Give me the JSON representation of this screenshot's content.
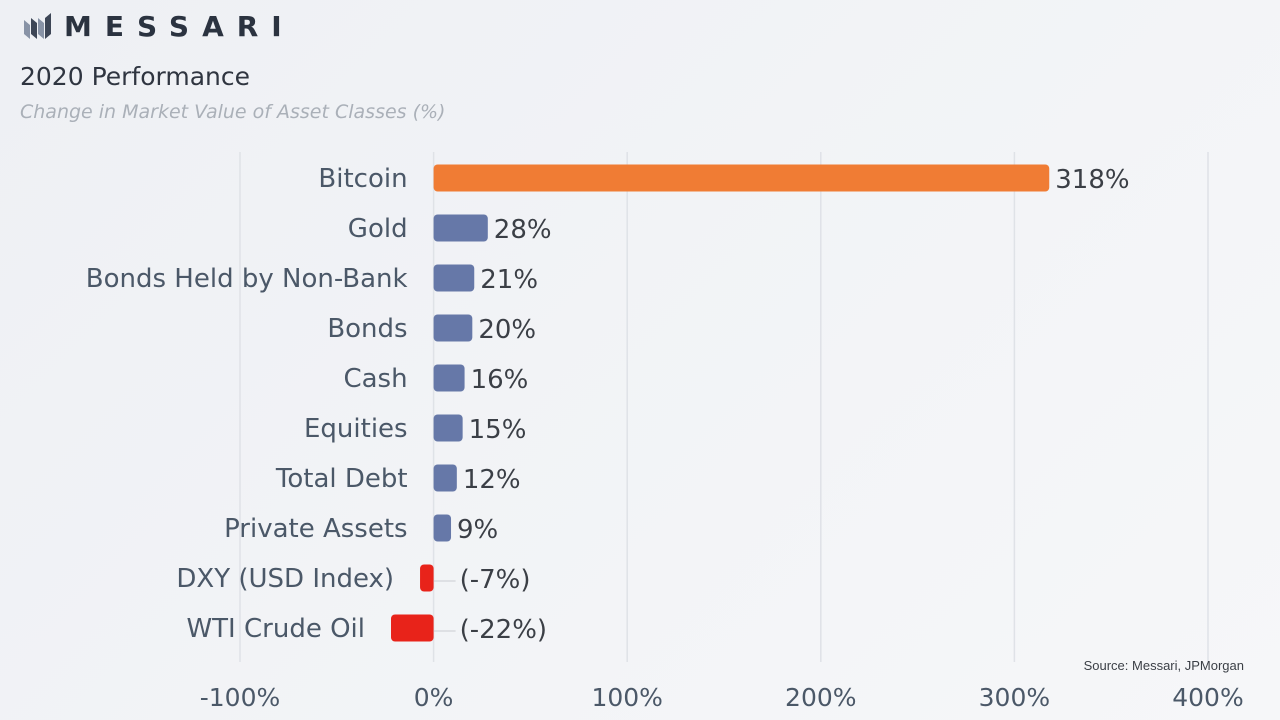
{
  "brand": {
    "name": "MESSARI"
  },
  "header": {
    "title": "2020 Performance",
    "subtitle": "Change in Market Value of  Asset Classes (%)"
  },
  "source": "Source: Messari, JPMorgan",
  "colors": {
    "highlight": "#f07c34",
    "positive": "#6678a8",
    "negative": "#e8231a",
    "grid": "#dfe2e7",
    "label": "#4b5868",
    "value": "#3b3f46"
  },
  "chart_data": {
    "type": "bar",
    "orientation": "horizontal",
    "title": "2020 Performance",
    "subtitle": "Change in Market Value of  Asset Classes (%)",
    "categories": [
      "Bitcoin",
      "Gold",
      "Bonds Held by Non-Bank",
      "Bonds",
      "Cash",
      "Equities",
      "Total Debt",
      "Private Assets",
      "DXY (USD Index)",
      "WTI Crude Oil"
    ],
    "values": [
      318,
      28,
      21,
      20,
      16,
      15,
      12,
      9,
      -7,
      -22
    ],
    "value_labels": [
      "318%",
      "28%",
      "21%",
      "20%",
      "16%",
      "15%",
      "12%",
      "9%",
      "(-7%)",
      "(-22%)"
    ],
    "xlim": [
      -100,
      400
    ],
    "xticks": [
      -100,
      0,
      100,
      200,
      300,
      400
    ],
    "xtick_labels": [
      "-100%",
      "0%",
      "100%",
      "200%",
      "300%",
      "400%"
    ],
    "grid": true,
    "legend": "none"
  }
}
